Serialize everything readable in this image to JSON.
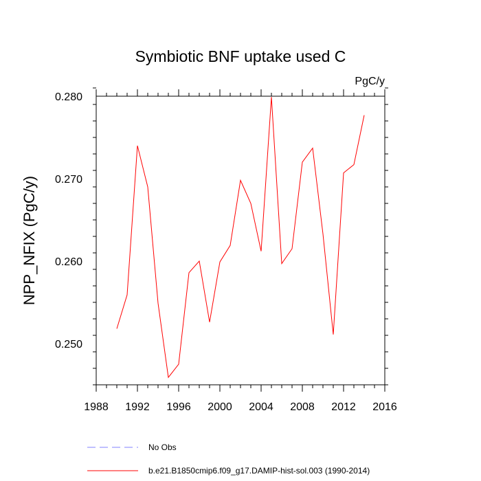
{
  "chart_data": {
    "type": "line",
    "title": "Symbiotic BNF uptake used C",
    "units_label": "PgC/y",
    "xlabel": "",
    "ylabel": "NPP_NFIX  (PgC/y)",
    "xlim": [
      1988,
      2016
    ],
    "ylim": [
      0.245,
      0.28
    ],
    "x_ticks": [
      1988,
      1992,
      1996,
      2000,
      2004,
      2008,
      2012,
      2016
    ],
    "y_ticks": [
      0.25,
      0.26,
      0.27,
      0.28
    ],
    "y_tick_labels": [
      "0.250",
      "0.260",
      "0.270",
      "0.280"
    ],
    "grid": false,
    "legend_position": "bottom",
    "series": [
      {
        "name": "b.e21.B1850cmip6.f09_g17.DAMIP-hist-sol.003 (1990-2014)",
        "color": "#ff0000",
        "style": "solid",
        "x": [
          1990,
          1991,
          1992,
          1993,
          1994,
          1995,
          1996,
          1997,
          1998,
          1999,
          2000,
          2001,
          2002,
          2003,
          2004,
          2005,
          2006,
          2007,
          2008,
          2009,
          2010,
          2011,
          2012,
          2013,
          2014
        ],
        "y": [
          0.2518,
          0.2559,
          0.274,
          0.269,
          0.2549,
          0.2459,
          0.2475,
          0.2586,
          0.26,
          0.2526,
          0.2599,
          0.2619,
          0.2698,
          0.267,
          0.2612,
          0.2799,
          0.2597,
          0.2615,
          0.272,
          0.2737,
          0.2633,
          0.2511,
          0.2707,
          0.2717,
          0.2777
        ]
      },
      {
        "name": "No Obs",
        "color": "#8080ff",
        "style": "dashed",
        "x": [],
        "y": []
      }
    ]
  }
}
